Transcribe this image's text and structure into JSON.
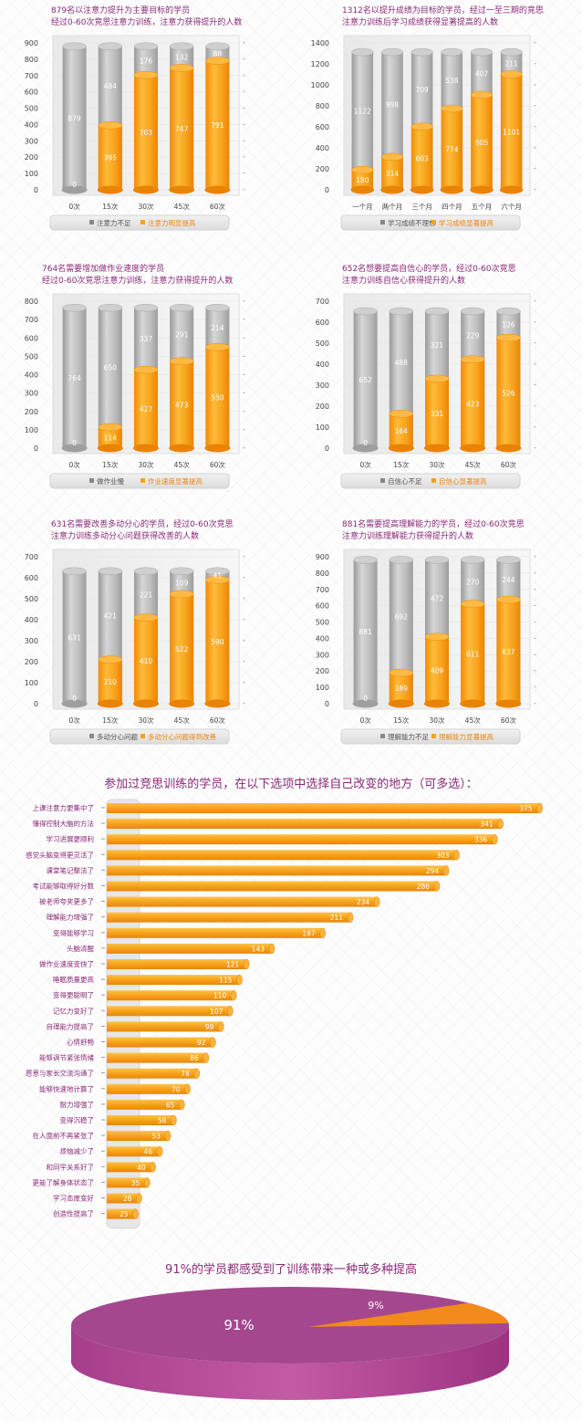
{
  "chart_data": [
    {
      "type": "bar",
      "stacked": true,
      "title": "879名以注意力提升为主要目标的学员\n经过0-60次竞思注意力训练，注意力获得提升的人数",
      "categories": [
        "0次",
        "15次",
        "30次",
        "45次",
        "60次"
      ],
      "ylim": [
        0,
        900
      ],
      "yticks": [
        0,
        100,
        200,
        300,
        400,
        500,
        600,
        700,
        800,
        900
      ],
      "series": [
        {
          "name": "注意力明显提高",
          "values": [
            0,
            395,
            703,
            747,
            791
          ]
        },
        {
          "name": "注意力不足",
          "values": [
            879,
            484,
            176,
            132,
            88
          ]
        }
      ],
      "legend": [
        "注意力不足",
        "注意力明显提高"
      ]
    },
    {
      "type": "bar",
      "stacked": true,
      "title": "1312名以提升成绩为目标的学员，经过一至三期的竞思\n注意力训练后学习成绩获得显著提高的人数",
      "categories": [
        "一个月",
        "两个月",
        "三个月",
        "四个月",
        "五个月",
        "六个月"
      ],
      "ylim": [
        0,
        1400
      ],
      "yticks": [
        0,
        200,
        400,
        600,
        800,
        1000,
        1200,
        1400
      ],
      "series": [
        {
          "name": "学习成绩显著提高",
          "values": [
            190,
            314,
            603,
            774,
            905,
            1101
          ]
        },
        {
          "name": "学习成绩不理想",
          "values": [
            1122,
            998,
            709,
            538,
            407,
            211
          ]
        }
      ],
      "legend": [
        "学习成绩不理想",
        "学习成绩显著提高"
      ]
    },
    {
      "type": "bar",
      "stacked": true,
      "title": "764名需要增加做作业速度的学员\n经过0-60次竞思注意力训练，注意力获得提升的人数",
      "categories": [
        "0次",
        "15次",
        "30次",
        "45次",
        "60次"
      ],
      "ylim": [
        0,
        800
      ],
      "yticks": [
        0,
        100,
        200,
        300,
        400,
        500,
        600,
        700,
        800
      ],
      "series": [
        {
          "name": "作业速度显著提高",
          "values": [
            0,
            114,
            427,
            473,
            550
          ]
        },
        {
          "name": "做作业慢",
          "values": [
            764,
            650,
            337,
            291,
            214
          ]
        }
      ],
      "legend": [
        "做作业慢",
        "作业速度显著提高"
      ]
    },
    {
      "type": "bar",
      "stacked": true,
      "title": "652名想要提高自信心的学员，经过0-60次竞思\n注意力训练自信心获得提升的人数",
      "categories": [
        "0次",
        "15次",
        "30次",
        "45次",
        "60次"
      ],
      "ylim": [
        0,
        700
      ],
      "yticks": [
        0,
        100,
        200,
        300,
        400,
        500,
        600,
        700
      ],
      "series": [
        {
          "name": "自信心显著提高",
          "values": [
            0,
            164,
            331,
            423,
            526
          ]
        },
        {
          "name": "自信心不足",
          "values": [
            652,
            488,
            321,
            229,
            126
          ]
        }
      ],
      "legend": [
        "自信心不足",
        "自信心显著提高"
      ]
    },
    {
      "type": "bar",
      "stacked": true,
      "title": "631名需要改善多动分心的学员，经过0-60次竞思\n注意力训练多动分心问题获得改善的人数",
      "categories": [
        "0次",
        "15次",
        "30次",
        "45次",
        "60次"
      ],
      "ylim": [
        0,
        700
      ],
      "yticks": [
        0,
        100,
        200,
        300,
        400,
        500,
        600,
        700
      ],
      "series": [
        {
          "name": "多动分心问题得到改善",
          "values": [
            0,
            210,
            410,
            522,
            590
          ]
        },
        {
          "name": "多动分心问题",
          "values": [
            631,
            421,
            221,
            109,
            41
          ]
        }
      ],
      "legend": [
        "多动分心问题",
        "多动分心问题得到改善"
      ]
    },
    {
      "type": "bar",
      "stacked": true,
      "title": "881名需要提高理解能力的学员，经过0-60次竞思\n注意力训练理解能力获得提升的人数",
      "categories": [
        "0次",
        "15次",
        "30次",
        "45次",
        "60次"
      ],
      "ylim": [
        0,
        900
      ],
      "yticks": [
        0,
        100,
        200,
        300,
        400,
        500,
        600,
        700,
        800,
        900
      ],
      "series": [
        {
          "name": "理解能力显著提高",
          "values": [
            0,
            189,
            409,
            611,
            637
          ]
        },
        {
          "name": "理解能力不足",
          "values": [
            881,
            692,
            472,
            270,
            244
          ]
        }
      ],
      "legend": [
        "理解能力不足",
        "理解能力显著提高"
      ]
    },
    {
      "type": "bar",
      "orientation": "horizontal",
      "title": "参加过竞思训练的学员，在以下选项中选择自己改变的地方（可多选）：",
      "categories": [
        "上课注意力更集中了",
        "懂得控制大脑的方法",
        "学习进展更顺利",
        "感觉头脑变得更灵活了",
        "课堂笔记整洁了",
        "考试能够取得好分数",
        "被老师夸奖更多了",
        "理解能力增强了",
        "变得能够学习",
        "头脑清醒",
        "做作业速度变快了",
        "睡眠质量更高",
        "变得更聪明了",
        "记忆力变好了",
        "自理能力提高了",
        "心情舒畅",
        "能够调节紧张情绪",
        "愿意与家长交流沟通了",
        "能够快速地计算了",
        "耐力增强了",
        "变得沉稳了",
        "在人面前不再紧张了",
        "烦恼减少了",
        "和同学关系好了",
        "更能了解身体状态了",
        "学习态度变好",
        "创造性提高了"
      ],
      "values": [
        375,
        341,
        336,
        303,
        294,
        286,
        234,
        211,
        187,
        143,
        121,
        115,
        110,
        107,
        99,
        92,
        86,
        78,
        70,
        65,
        58,
        53,
        46,
        40,
        35,
        28,
        25
      ],
      "xlim": [
        0,
        380
      ]
    },
    {
      "type": "pie",
      "title": "91%的学员都感受到了训练带来一种或多种提高",
      "labels": [
        "91%",
        "9%"
      ],
      "values": [
        91,
        9
      ],
      "colors": [
        "#a8448f",
        "#f28a1c"
      ]
    }
  ],
  "colors": {
    "orange": "#f7a21b",
    "gray": "#b9b9b9",
    "purple": "#8b2a78",
    "pie_main": "#a8448f",
    "pie_small": "#f28a1c"
  }
}
